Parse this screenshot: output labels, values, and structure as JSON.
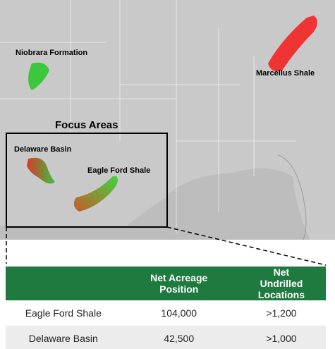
{
  "map": {
    "labels": {
      "niobrara": "Niobrara Formation",
      "marcellus": "Marcellus Shale",
      "focus": "Focus Areas",
      "delaware": "Delaware Basin",
      "eagle_ford": "Eagle Ford Shale"
    }
  },
  "table": {
    "headers": [
      "Net Acreage Position",
      "Net Undrilled Locations"
    ],
    "rows": [
      [
        "Eagle Ford Shale",
        "104,000",
        ">1,200"
      ],
      [
        "Delaware Basin",
        "42,500",
        ">1,000"
      ]
    ]
  }
}
